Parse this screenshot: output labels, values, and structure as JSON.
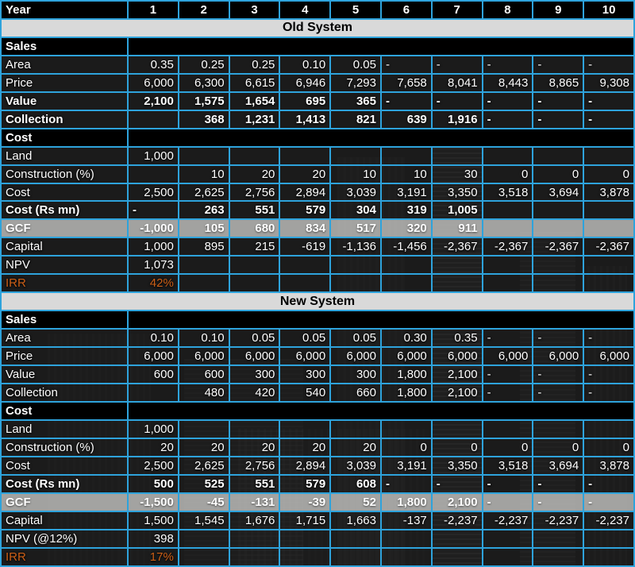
{
  "colors": {
    "grid_border": "#2EA3DC",
    "banner_bg": "#D9D9D9",
    "gcf_row_bg": "#ABABAB",
    "irr_text": "#CB5F17",
    "header_bg": "#000000",
    "cell_bg": "#262626",
    "text": "#FFFFFF"
  },
  "header": {
    "label": "Year",
    "columns": [
      "1",
      "2",
      "3",
      "4",
      "5",
      "6",
      "7",
      "8",
      "9",
      "10"
    ]
  },
  "sections": [
    {
      "banner": "Old System",
      "rows": [
        {
          "kind": "group",
          "label": "Sales"
        },
        {
          "kind": "data",
          "label": "Area",
          "values": [
            "0.35",
            "0.25",
            "0.25",
            "0.10",
            "0.05",
            "-",
            "-",
            "-",
            "-",
            "-"
          ]
        },
        {
          "kind": "data",
          "label": "Price",
          "values": [
            "6,000",
            "6,300",
            "6,615",
            "6,946",
            "7,293",
            "7,658",
            "8,041",
            "8,443",
            "8,865",
            "9,308"
          ]
        },
        {
          "kind": "bold",
          "label": "Value",
          "values": [
            "2,100",
            "1,575",
            "1,654",
            "695",
            "365",
            "-",
            "-",
            "-",
            "-",
            "-"
          ]
        },
        {
          "kind": "bold",
          "label": "Collection",
          "values": [
            "",
            "368",
            "1,231",
            "1,413",
            "821",
            "639",
            "1,916",
            "-",
            "-",
            "-"
          ]
        },
        {
          "kind": "group",
          "label": "Cost"
        },
        {
          "kind": "data",
          "label": "Land",
          "values": [
            "1,000",
            "",
            "",
            "",
            "",
            "",
            "",
            "",
            "",
            ""
          ]
        },
        {
          "kind": "data",
          "label": "Construction (%)",
          "values": [
            "",
            "10",
            "20",
            "20",
            "10",
            "10",
            "30",
            "0",
            "0",
            "0"
          ]
        },
        {
          "kind": "data",
          "label": "Cost",
          "values": [
            "2,500",
            "2,625",
            "2,756",
            "2,894",
            "3,039",
            "3,191",
            "3,350",
            "3,518",
            "3,694",
            "3,878"
          ]
        },
        {
          "kind": "bold",
          "label": "Cost (Rs mn)",
          "values": [
            "-",
            "263",
            "551",
            "579",
            "304",
            "319",
            "1,005",
            "",
            "",
            ""
          ]
        },
        {
          "kind": "gcf",
          "label": "GCF",
          "values": [
            "-1,000",
            "105",
            "680",
            "834",
            "517",
            "320",
            "911",
            "",
            "",
            ""
          ]
        },
        {
          "kind": "data",
          "label": "Capital",
          "values": [
            "1,000",
            "895",
            "215",
            "-619",
            "-1,136",
            "-1,456",
            "-2,367",
            "-2,367",
            "-2,367",
            "-2,367"
          ]
        },
        {
          "kind": "data",
          "label": "NPV",
          "values": [
            "1,073",
            "",
            "",
            "",
            "",
            "",
            "",
            "",
            "",
            ""
          ]
        },
        {
          "kind": "irr",
          "label": "IRR",
          "values": [
            "42%",
            "",
            "",
            "",
            "",
            "",
            "",
            "",
            "",
            ""
          ]
        }
      ]
    },
    {
      "banner": "New System",
      "rows": [
        {
          "kind": "group",
          "label": "Sales"
        },
        {
          "kind": "data",
          "label": "Area",
          "values": [
            "0.10",
            "0.10",
            "0.05",
            "0.05",
            "0.05",
            "0.30",
            "0.35",
            "-",
            "-",
            "-"
          ]
        },
        {
          "kind": "data",
          "label": "Price",
          "values": [
            "6,000",
            "6,000",
            "6,000",
            "6,000",
            "6,000",
            "6,000",
            "6,000",
            "6,000",
            "6,000",
            "6,000"
          ]
        },
        {
          "kind": "data",
          "label": "Value",
          "values": [
            "600",
            "600",
            "300",
            "300",
            "300",
            "1,800",
            "2,100",
            "-",
            "-",
            "-"
          ]
        },
        {
          "kind": "data",
          "label": "Collection",
          "values": [
            "",
            "480",
            "420",
            "540",
            "660",
            "1,800",
            "2,100",
            "-",
            "-",
            "-"
          ]
        },
        {
          "kind": "group",
          "label": "Cost"
        },
        {
          "kind": "data",
          "label": "Land",
          "values": [
            "1,000",
            "",
            "",
            "",
            "",
            "",
            "",
            "",
            "",
            ""
          ]
        },
        {
          "kind": "data",
          "label": "Construction (%)",
          "values": [
            "20",
            "20",
            "20",
            "20",
            "20",
            "0",
            "0",
            "0",
            "0",
            "0"
          ]
        },
        {
          "kind": "data",
          "label": "Cost",
          "values": [
            "2,500",
            "2,625",
            "2,756",
            "2,894",
            "3,039",
            "3,191",
            "3,350",
            "3,518",
            "3,694",
            "3,878"
          ]
        },
        {
          "kind": "bold",
          "label": "Cost (Rs mn)",
          "values": [
            "500",
            "525",
            "551",
            "579",
            "608",
            "-",
            "-",
            "-",
            "-",
            "-"
          ]
        },
        {
          "kind": "gcf",
          "label": "GCF",
          "values": [
            "-1,500",
            "-45",
            "-131",
            "-39",
            "52",
            "1,800",
            "2,100",
            "-",
            "-",
            "-"
          ]
        },
        {
          "kind": "data",
          "label": "Capital",
          "values": [
            "1,500",
            "1,545",
            "1,676",
            "1,715",
            "1,663",
            "-137",
            "-2,237",
            "-2,237",
            "-2,237",
            "-2,237"
          ]
        },
        {
          "kind": "data",
          "label": "NPV (@12%)",
          "values": [
            "398",
            "",
            "",
            "",
            "",
            "",
            "",
            "",
            "",
            ""
          ]
        },
        {
          "kind": "irr",
          "label": "IRR",
          "values": [
            "17%",
            "",
            "",
            "",
            "",
            "",
            "",
            "",
            "",
            ""
          ]
        }
      ]
    }
  ]
}
